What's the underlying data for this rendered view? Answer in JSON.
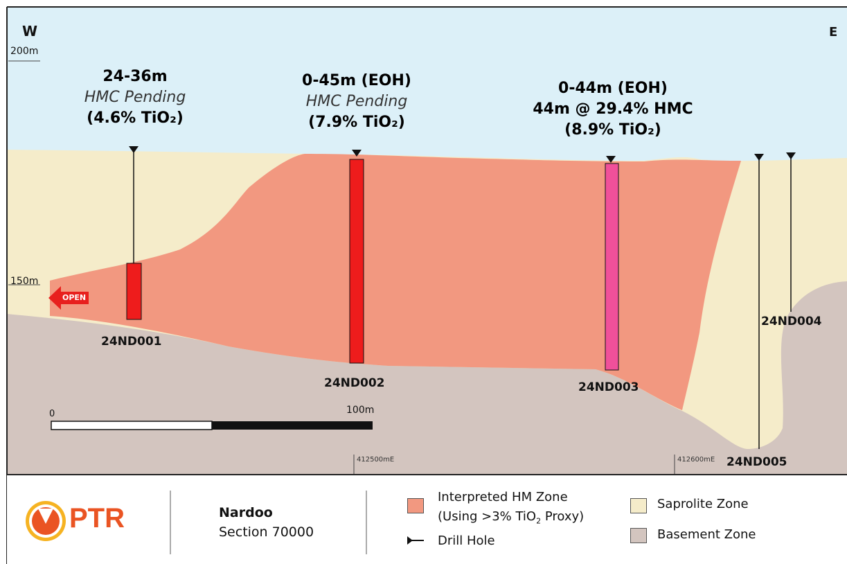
{
  "directions": {
    "west": "W",
    "east": "E"
  },
  "elevations": {
    "top": "200m",
    "mid": "150m"
  },
  "annotations": {
    "hole1": {
      "interval": "24-36m",
      "note": "HMC Pending",
      "grade": "(4.6% TiO₂)"
    },
    "hole2": {
      "interval": "0-45m (EOH)",
      "note": "HMC Pending",
      "grade": "(7.9% TiO₂)"
    },
    "hole3": {
      "interval": "0-44m (EOH)",
      "result": "44m @ 29.4% HMC",
      "grade": "(8.9% TiO₂)"
    }
  },
  "drill_holes": [
    "24ND001",
    "24ND002",
    "24ND003",
    "24ND004",
    "24ND005"
  ],
  "open_label": "OPEN",
  "scale_bar": {
    "start": "0",
    "end": "100m"
  },
  "eastings": [
    "412500mE",
    "412600mE"
  ],
  "legend": {
    "logo_text": "PTR",
    "project": "Nardoo",
    "section": "Section 70000",
    "hm_zone_line1": "Interpreted HM Zone",
    "hm_zone_line2_prefix": "(Using >3% TiO",
    "hm_zone_line2_sub": "2",
    "hm_zone_line2_suffix": " Proxy)",
    "drill_hole": "Drill Hole",
    "saprolite": "Saprolite Zone",
    "basement": "Basement Zone"
  },
  "colors": {
    "sky": "#dcf0f8",
    "saprolite": "#f5ecca",
    "basement": "#d3c5bf",
    "hm_zone": "#f29880",
    "hole_red": "#ee1c1c",
    "hole_pink": "#f0509a",
    "logo_orange": "#ea5423",
    "logo_yellow": "#f6b322"
  }
}
